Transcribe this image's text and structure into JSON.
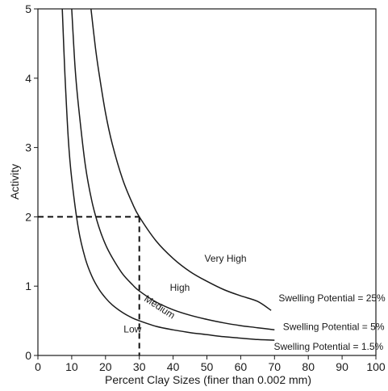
{
  "chart_data": {
    "type": "line",
    "xlabel": "Percent Clay Sizes (finer than 0.002 mm)",
    "ylabel": "Activity",
    "xlim": [
      0,
      100
    ],
    "ylim": [
      0,
      5
    ],
    "x_ticks": [
      "0",
      "10",
      "20",
      "30",
      "40",
      "50",
      "60",
      "70",
      "80",
      "90",
      "100"
    ],
    "y_ticks": [
      "0",
      "1",
      "2",
      "3",
      "4",
      "5"
    ],
    "grid": false,
    "series": [
      {
        "key": "low-medium",
        "x": [
          7.2,
          8,
          9,
          10,
          12,
          14,
          16,
          18,
          20,
          22,
          25,
          28,
          30,
          35,
          40,
          45,
          50,
          55,
          60,
          65,
          70
        ],
        "y": [
          5.0,
          4.05,
          3.12,
          2.55,
          1.82,
          1.4,
          1.14,
          0.96,
          0.83,
          0.73,
          0.62,
          0.54,
          0.5,
          0.42,
          0.37,
          0.33,
          0.3,
          0.27,
          0.25,
          0.23,
          0.22
        ]
      },
      {
        "key": "medium-high",
        "x": [
          10,
          11,
          12,
          14,
          16,
          18,
          20,
          22,
          25,
          28,
          30,
          35,
          40,
          45,
          50,
          55,
          60,
          65,
          70
        ],
        "y": [
          5.0,
          4.15,
          3.6,
          2.75,
          2.22,
          1.86,
          1.6,
          1.41,
          1.18,
          1.02,
          0.93,
          0.77,
          0.66,
          0.58,
          0.52,
          0.47,
          0.43,
          0.4,
          0.37
        ]
      },
      {
        "key": "high-very-high",
        "x": [
          15.7,
          17,
          18,
          20,
          22,
          25,
          28,
          30,
          35,
          40,
          45,
          50,
          55,
          60,
          65,
          69
        ],
        "y": [
          5.0,
          4.45,
          4.1,
          3.5,
          3.05,
          2.55,
          2.19,
          2.0,
          1.65,
          1.4,
          1.21,
          1.07,
          0.95,
          0.86,
          0.78,
          0.65
        ]
      }
    ],
    "reference_lines": [
      {
        "x": [
          0,
          30
        ],
        "y": [
          2,
          2
        ]
      },
      {
        "x": [
          30,
          30
        ],
        "y": [
          2,
          0
        ]
      }
    ],
    "annotations": [
      {
        "text": "Very High",
        "x": 55.5,
        "y": 1.35,
        "rotate": 0
      },
      {
        "text": "High",
        "x": 42,
        "y": 0.93,
        "rotate": 0
      },
      {
        "text": "Medium",
        "x": 35.5,
        "y": 0.66,
        "rotate": 33
      },
      {
        "text": "Low",
        "x": 28,
        "y": 0.33,
        "rotate": 0
      },
      {
        "text": "Swelling Potential = 25%",
        "x": 87,
        "y": 0.78,
        "rotate": 0
      },
      {
        "text": "Swelling Potential = 5%",
        "x": 87.5,
        "y": 0.37,
        "rotate": 0
      },
      {
        "text": "Swelling Potential = 1.5%",
        "x": 86,
        "y": 0.08,
        "rotate": 0
      }
    ]
  }
}
